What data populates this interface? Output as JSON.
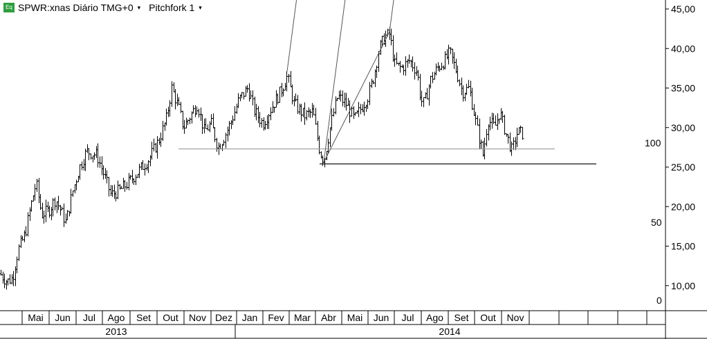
{
  "header": {
    "badge": "Eq",
    "symbol_label": "SPWR:xnas Diário TMG+0",
    "symbol_caret": "▾",
    "study_label": "Pitchfork 1",
    "study_caret": "▾"
  },
  "colors": {
    "background": "#ffffff",
    "candles": "#000000",
    "fork_lines": "#555555",
    "support_line": "#000000",
    "resistance_line": "#999999",
    "badge": "#2e9e3e"
  },
  "chart_data": {
    "type": "ohlc",
    "title": "SPWR:xnas Diário TMG+0",
    "ylim": [
      8.0,
      46.0
    ],
    "y_ticks": [
      "45,00",
      "40,00",
      "35,00",
      "30,00",
      "25,00",
      "20,00",
      "15,00",
      "10,00"
    ],
    "y_tick_values": [
      45,
      40,
      35,
      30,
      25,
      20,
      15,
      10
    ],
    "months": [
      "Mai",
      "Jun",
      "Jul",
      "Ago",
      "Set",
      "Out",
      "Nov",
      "Dez",
      "Jan",
      "Fev",
      "Mar",
      "Abr",
      "Mai",
      "Jun",
      "Jul",
      "Ago",
      "Set",
      "Out",
      "Nov"
    ],
    "years": [
      "2013",
      "2014"
    ],
    "price_path": [
      [
        0,
        11.5
      ],
      [
        10,
        10.5
      ],
      [
        18,
        11.0
      ],
      [
        26,
        14.5
      ],
      [
        36,
        16.5
      ],
      [
        44,
        20.0
      ],
      [
        52,
        23.0
      ],
      [
        60,
        19.0
      ],
      [
        70,
        19.5
      ],
      [
        80,
        21.0
      ],
      [
        95,
        18.0
      ],
      [
        105,
        22.0
      ],
      [
        115,
        25.0
      ],
      [
        125,
        27.0
      ],
      [
        140,
        26.5
      ],
      [
        150,
        24.0
      ],
      [
        160,
        21.5
      ],
      [
        172,
        22.0
      ],
      [
        185,
        23.0
      ],
      [
        200,
        24.5
      ],
      [
        215,
        26.0
      ],
      [
        230,
        28.5
      ],
      [
        240,
        31.0
      ],
      [
        248,
        35.0
      ],
      [
        258,
        32.5
      ],
      [
        265,
        30.0
      ],
      [
        275,
        31.5
      ],
      [
        285,
        33.0
      ],
      [
        295,
        29.5
      ],
      [
        305,
        30.5
      ],
      [
        315,
        27.5
      ],
      [
        325,
        29.0
      ],
      [
        335,
        31.0
      ],
      [
        345,
        33.5
      ],
      [
        358,
        35.0
      ],
      [
        368,
        32.0
      ],
      [
        380,
        30.5
      ],
      [
        392,
        32.5
      ],
      [
        405,
        34.5
      ],
      [
        415,
        36.5
      ],
      [
        425,
        33.0
      ],
      [
        440,
        31.5
      ],
      [
        452,
        32.0
      ],
      [
        462,
        27.0
      ],
      [
        468,
        25.8
      ],
      [
        478,
        30.5
      ],
      [
        488,
        34.0
      ],
      [
        500,
        33.0
      ],
      [
        512,
        31.0
      ],
      [
        522,
        32.5
      ],
      [
        532,
        34.0
      ],
      [
        540,
        36.5
      ],
      [
        548,
        40.0
      ],
      [
        556,
        41.5
      ],
      [
        563,
        41.8
      ],
      [
        570,
        38.0
      ],
      [
        580,
        37.5
      ],
      [
        592,
        38.5
      ],
      [
        603,
        37.0
      ],
      [
        608,
        33.5
      ],
      [
        613,
        33.0
      ],
      [
        622,
        36.0
      ],
      [
        632,
        37.5
      ],
      [
        643,
        38.5
      ],
      [
        650,
        39.5
      ],
      [
        660,
        37.0
      ],
      [
        668,
        34.5
      ],
      [
        678,
        35.0
      ],
      [
        688,
        30.5
      ],
      [
        698,
        26.5
      ],
      [
        705,
        31.0
      ],
      [
        715,
        30.0
      ],
      [
        722,
        32.0
      ],
      [
        732,
        29.0
      ],
      [
        740,
        27.0
      ],
      [
        748,
        29.5
      ],
      [
        756,
        29.2
      ]
    ],
    "pitchfork": {
      "anchor_a": [
        468,
        25.6
      ],
      "anchor_b": [
        563,
        42.1
      ],
      "anchor_c": [
        415,
        37.1
      ],
      "labels": [
        "0",
        "50",
        "100"
      ]
    },
    "lines": [
      {
        "kind": "support",
        "x1": 462,
        "x2": 862,
        "y": 25.4
      },
      {
        "kind": "resistance",
        "x1": 258,
        "x2": 802,
        "y": 27.3
      }
    ]
  }
}
